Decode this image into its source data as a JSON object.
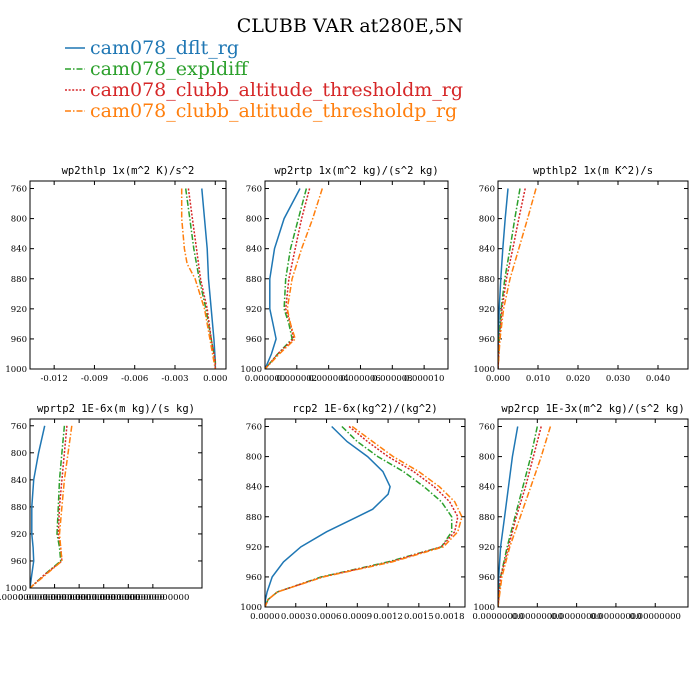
{
  "figure": {
    "title": "CLUBB VAR at280E,5N",
    "legend": [
      {
        "label": "cam078_dflt_rg",
        "color": "#1f77b4",
        "dash": "solid"
      },
      {
        "label": "cam078_expldiff",
        "color": "#2ca02c",
        "dash": "dashdot"
      },
      {
        "label": "cam078_clubb_altitude_thresholdm_rg",
        "color": "#d62728",
        "dash": "dotted"
      },
      {
        "label": "cam078_clubb_altitude_thresholdp_rg",
        "color": "#ff7f0e",
        "dash": "dashdot"
      }
    ]
  },
  "chart_data": [
    {
      "type": "line",
      "title": "wp2thlp  1x(m^2 K)/s^2",
      "ylim": [
        1000,
        750
      ],
      "yticks": [
        "760",
        "800",
        "840",
        "880",
        "920",
        "960",
        "1000"
      ],
      "xlim": [
        -0.0138,
        0.0008
      ],
      "xticks": [
        {
          "v": -0.012,
          "l": "-0.012"
        },
        {
          "v": -0.009,
          "l": "-0.009"
        },
        {
          "v": -0.006,
          "l": "-0.006"
        },
        {
          "v": -0.003,
          "l": "-0.003"
        },
        {
          "v": 0.0,
          "l": "0.000"
        }
      ],
      "series": [
        {
          "name": "cam078_dflt_rg",
          "y": [
            760,
            800,
            840,
            880,
            920,
            960,
            990,
            1000
          ],
          "x": [
            -0.001,
            -0.0008,
            -0.0006,
            -0.0005,
            -0.0003,
            -0.0001,
            0.0,
            0.0
          ]
        },
        {
          "name": "cam078_expldiff",
          "y": [
            760,
            800,
            840,
            880,
            920,
            960,
            990,
            1000
          ],
          "x": [
            -0.0022,
            -0.0019,
            -0.0016,
            -0.0012,
            -0.0007,
            -0.0003,
            0.0,
            0.0
          ]
        },
        {
          "name": "cam078_clubb_altitude_thresholdm_rg",
          "y": [
            760,
            800,
            840,
            880,
            920,
            960,
            990,
            1000
          ],
          "x": [
            -0.002,
            -0.0017,
            -0.0014,
            -0.0011,
            -0.0006,
            -0.0003,
            0.0,
            0.0
          ]
        },
        {
          "name": "cam078_clubb_altitude_thresholdp_rg",
          "y": [
            760,
            800,
            840,
            860,
            880,
            920,
            960,
            990,
            1000
          ],
          "x": [
            -0.0025,
            -0.0025,
            -0.0023,
            -0.0021,
            -0.0015,
            -0.0008,
            -0.0004,
            -0.0001,
            0.0
          ]
        }
      ]
    },
    {
      "type": "line",
      "title": "wp2rtp  1x(m^2 kg)/(s^2 kg)",
      "ylim": [
        1000,
        750
      ],
      "yticks": [
        "760",
        "800",
        "840",
        "880",
        "920",
        "960",
        "1000"
      ],
      "xlim": [
        0,
        1.15e-05
      ],
      "xticks": [
        {
          "v": 0.0,
          "l": "0.000000"
        },
        {
          "v": 2e-06,
          "l": "0.000002"
        },
        {
          "v": 4e-06,
          "l": "0.000004"
        },
        {
          "v": 6e-06,
          "l": "0.000006"
        },
        {
          "v": 8e-06,
          "l": "0.000008"
        },
        {
          "v": 1e-05,
          "l": "0.000010"
        }
      ],
      "series": [
        {
          "name": "cam078_dflt_rg",
          "y": [
            760,
            800,
            840,
            880,
            920,
            940,
            960,
            980,
            1000
          ],
          "x": [
            2.2e-06,
            1.2e-06,
            6e-07,
            3e-07,
            3e-07,
            5e-07,
            7e-07,
            4e-07,
            0.0
          ]
        },
        {
          "name": "cam078_expldiff",
          "y": [
            760,
            800,
            840,
            880,
            920,
            940,
            960,
            980,
            1000
          ],
          "x": [
            2.6e-06,
            2.1e-06,
            1.6e-06,
            1.3e-06,
            1.2e-06,
            1.5e-06,
            1.7e-06,
            8e-07,
            0.0
          ]
        },
        {
          "name": "cam078_clubb_altitude_thresholdm_rg",
          "y": [
            760,
            800,
            840,
            880,
            920,
            940,
            960,
            980,
            1000
          ],
          "x": [
            2.8e-06,
            2.3e-06,
            1.9e-06,
            1.5e-06,
            1.3e-06,
            1.6e-06,
            1.8e-06,
            8e-07,
            0.0
          ]
        },
        {
          "name": "cam078_clubb_altitude_thresholdp_rg",
          "y": [
            760,
            800,
            840,
            880,
            920,
            940,
            960,
            980,
            1000
          ],
          "x": [
            3.6e-06,
            3e-06,
            2.3e-06,
            1.7e-06,
            1.4e-06,
            1.6e-06,
            1.9e-06,
            9e-07,
            0.0
          ]
        }
      ]
    },
    {
      "type": "line",
      "title": "wpthlp2  1x(m K^2)/s",
      "ylim": [
        1000,
        750
      ],
      "yticks": [
        "760",
        "800",
        "840",
        "880",
        "920",
        "960",
        "1000"
      ],
      "xlim": [
        0,
        0.0475
      ],
      "xticks": [
        {
          "v": 0.0,
          "l": "0.000"
        },
        {
          "v": 0.01,
          "l": "0.010"
        },
        {
          "v": 0.02,
          "l": "0.020"
        },
        {
          "v": 0.03,
          "l": "0.030"
        },
        {
          "v": 0.04,
          "l": "0.040"
        }
      ],
      "series": [
        {
          "name": "cam078_dflt_rg",
          "y": [
            760,
            800,
            840,
            880,
            920,
            960,
            1000
          ],
          "x": [
            0.0025,
            0.0018,
            0.0012,
            0.0007,
            0.0003,
            0.0001,
            0.0
          ]
        },
        {
          "name": "cam078_expldiff",
          "y": [
            760,
            800,
            840,
            880,
            920,
            960,
            1000
          ],
          "x": [
            0.0055,
            0.0042,
            0.003,
            0.0017,
            0.0008,
            0.0003,
            0.0
          ]
        },
        {
          "name": "cam078_clubb_altitude_thresholdm_rg",
          "y": [
            760,
            800,
            840,
            880,
            920,
            960,
            1000
          ],
          "x": [
            0.0068,
            0.0052,
            0.0037,
            0.0021,
            0.001,
            0.0004,
            0.0
          ]
        },
        {
          "name": "cam078_clubb_altitude_thresholdp_rg",
          "y": [
            760,
            800,
            840,
            880,
            920,
            960,
            1000
          ],
          "x": [
            0.0095,
            0.0074,
            0.0052,
            0.003,
            0.0014,
            0.0005,
            0.0
          ]
        }
      ]
    },
    {
      "type": "line",
      "title": "wprtp2  1E-6x(m kg)/(s kg)",
      "ylim": [
        1000,
        750
      ],
      "yticks": [
        "760",
        "800",
        "840",
        "880",
        "920",
        "960",
        "1000"
      ],
      "xlim": [
        0,
        1.4e-12
      ],
      "xticks": [
        {
          "v": 0.0,
          "l": "0.000000000000"
        },
        {
          "v": 2e-13,
          "l": "0.000000000000"
        },
        {
          "v": 4e-13,
          "l": "0.000000000000"
        },
        {
          "v": 6e-13,
          "l": "0.000000000000"
        },
        {
          "v": 8e-13,
          "l": "0.000000000000"
        },
        {
          "v": 1e-12,
          "l": "0.000000000000"
        }
      ],
      "series": [
        {
          "name": "cam078_dflt_rg",
          "y": [
            760,
            800,
            840,
            880,
            920,
            940,
            960,
            980,
            1000
          ],
          "x": [
            1.2e-13,
            7e-14,
            3e-14,
            1.5e-14,
            1.5e-14,
            2.5e-14,
            3e-14,
            1.5e-14,
            0.0
          ]
        },
        {
          "name": "cam078_expldiff",
          "y": [
            760,
            800,
            840,
            880,
            920,
            940,
            960,
            980,
            1000
          ],
          "x": [
            2.8e-13,
            2.6e-13,
            2.4e-13,
            2.3e-13,
            2.2e-13,
            2.4e-13,
            2.5e-13,
            1.2e-13,
            0.0
          ]
        },
        {
          "name": "cam078_clubb_altitude_thresholdm_rg",
          "y": [
            760,
            800,
            840,
            880,
            920,
            940,
            960,
            980,
            1000
          ],
          "x": [
            3e-13,
            2.8e-13,
            2.6e-13,
            2.4e-13,
            2.3e-13,
            2.5e-13,
            2.6e-13,
            1.2e-13,
            0.0
          ]
        },
        {
          "name": "cam078_clubb_altitude_thresholdp_rg",
          "y": [
            760,
            800,
            840,
            880,
            920,
            940,
            960,
            980,
            1000
          ],
          "x": [
            3.4e-13,
            3.1e-13,
            2.8e-13,
            2.6e-13,
            2.4e-13,
            2.5e-13,
            2.6e-13,
            1.3e-13,
            0.0
          ]
        }
      ]
    },
    {
      "type": "line",
      "title": "rcp2  1E-6x(kg^2)/(kg^2)",
      "ylim": [
        1000,
        750
      ],
      "yticks": [
        "760",
        "800",
        "840",
        "880",
        "920",
        "960",
        "1000"
      ],
      "xlim": [
        0,
        0.00195
      ],
      "xticks": [
        {
          "v": 0.0,
          "l": "0.0000"
        },
        {
          "v": 0.0003,
          "l": "0.0003"
        },
        {
          "v": 0.0006,
          "l": "0.0006"
        },
        {
          "v": 0.0009,
          "l": "0.0009"
        },
        {
          "v": 0.0012,
          "l": "0.0012"
        },
        {
          "v": 0.0015,
          "l": "0.0015"
        },
        {
          "v": 0.0018,
          "l": "0.0018"
        }
      ],
      "series": [
        {
          "name": "cam078_dflt_rg",
          "y": [
            760,
            780,
            800,
            820,
            840,
            850,
            870,
            880,
            900,
            920,
            940,
            960,
            980,
            990,
            1000
          ],
          "x": [
            0.00065,
            0.0008,
            0.001,
            0.00115,
            0.00122,
            0.0012,
            0.00105,
            0.0009,
            0.0006,
            0.00035,
            0.00018,
            7e-05,
            2e-05,
            5e-06,
            0.0
          ]
        },
        {
          "name": "cam078_expldiff",
          "y": [
            760,
            780,
            800,
            820,
            840,
            860,
            880,
            900,
            920,
            940,
            960,
            980,
            990,
            1000
          ],
          "x": [
            0.00075,
            0.0009,
            0.0011,
            0.00135,
            0.00155,
            0.00172,
            0.00182,
            0.00182,
            0.00172,
            0.0012,
            0.00055,
            0.00012,
            3e-05,
            0.0
          ]
        },
        {
          "name": "cam078_clubb_altitude_thresholdm_rg",
          "y": [
            760,
            780,
            800,
            820,
            840,
            860,
            880,
            900,
            920,
            940,
            960,
            980,
            990,
            1000
          ],
          "x": [
            0.00082,
            0.001,
            0.0012,
            0.00145,
            0.00165,
            0.0018,
            0.00188,
            0.00185,
            0.00172,
            0.00122,
            0.00056,
            0.00012,
            3e-05,
            0.0
          ]
        },
        {
          "name": "cam078_clubb_altitude_thresholdp_rg",
          "y": [
            760,
            780,
            800,
            820,
            840,
            860,
            880,
            900,
            920,
            940,
            960,
            980,
            990,
            1000
          ],
          "x": [
            0.00085,
            0.00105,
            0.00125,
            0.0015,
            0.0017,
            0.00185,
            0.00192,
            0.00188,
            0.00174,
            0.00124,
            0.00057,
            0.00012,
            3e-05,
            0.0
          ]
        }
      ]
    },
    {
      "type": "line",
      "title": "wp2rcp  1E-3x(m^2 kg)/(s^2 kg)",
      "ylim": [
        1000,
        750
      ],
      "yticks": [
        "760",
        "800",
        "840",
        "880",
        "920",
        "960",
        "1000"
      ],
      "xlim": [
        0,
        1.45e-08
      ],
      "xticks": [
        {
          "v": 0.0,
          "l": "0.00000000"
        },
        {
          "v": 3e-09,
          "l": "0.00000000"
        },
        {
          "v": 6e-09,
          "l": "0.00000000"
        },
        {
          "v": 9e-09,
          "l": "0.00000000"
        },
        {
          "v": 1.2e-08,
          "l": "0.00000000"
        }
      ],
      "series": [
        {
          "name": "cam078_dflt_rg",
          "y": [
            760,
            800,
            840,
            880,
            920,
            960,
            1000
          ],
          "x": [
            1.5e-09,
            1.1e-09,
            8e-10,
            5e-10,
            2e-10,
            5e-11,
            0.0
          ]
        },
        {
          "name": "cam078_expldiff",
          "y": [
            760,
            800,
            840,
            880,
            920,
            960,
            1000
          ],
          "x": [
            3e-09,
            2.5e-09,
            1.9e-09,
            1.3e-09,
            7e-10,
            2e-10,
            0.0
          ]
        },
        {
          "name": "cam078_clubb_altitude_thresholdm_rg",
          "y": [
            760,
            800,
            840,
            880,
            920,
            960,
            1000
          ],
          "x": [
            3.3e-09,
            2.7e-09,
            2.1e-09,
            1.4e-09,
            8e-10,
            2e-10,
            0.0
          ]
        },
        {
          "name": "cam078_clubb_altitude_thresholdp_rg",
          "y": [
            760,
            800,
            840,
            880,
            920,
            960,
            1000
          ],
          "x": [
            4e-09,
            3.3e-09,
            2.5e-09,
            1.7e-09,
            9e-10,
            3e-10,
            0.0
          ]
        }
      ]
    }
  ]
}
